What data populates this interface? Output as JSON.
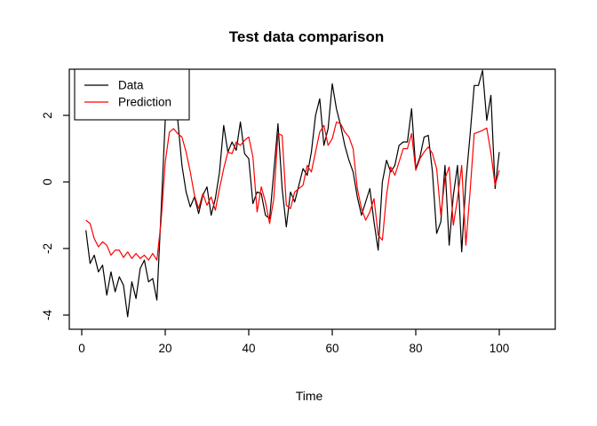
{
  "title": "Test data comparison",
  "chart_data": {
    "type": "line",
    "title": "Test data comparison",
    "xlabel": "Time",
    "ylabel": "",
    "x_start": 1,
    "xlim": [
      -3,
      113
    ],
    "ylim": [
      -4.35,
      3.45
    ],
    "xticks": [
      0,
      20,
      40,
      60,
      80,
      100
    ],
    "yticks": [
      -4,
      -2,
      0,
      2
    ],
    "grid": false,
    "legend": {
      "position": "top-left",
      "entries": [
        {
          "label": "Data",
          "color": "#000000"
        },
        {
          "label": "Prediction",
          "color": "#ff0000"
        }
      ]
    },
    "series": [
      {
        "name": "Data",
        "color": "#000000",
        "values": [
          -1.45,
          -2.45,
          -2.2,
          -2.7,
          -2.5,
          -3.4,
          -2.7,
          -3.3,
          -2.85,
          -3.1,
          -4.05,
          -3.0,
          -3.5,
          -2.6,
          -2.35,
          -3.0,
          -2.9,
          -3.55,
          -0.9,
          1.85,
          2.55,
          2.3,
          1.85,
          0.5,
          -0.3,
          -0.75,
          -0.45,
          -0.95,
          -0.4,
          -0.15,
          -1.0,
          -0.5,
          0.3,
          1.7,
          0.9,
          1.2,
          0.95,
          1.8,
          0.85,
          0.7,
          -0.65,
          -0.3,
          -0.35,
          -1.0,
          -1.1,
          0.3,
          1.75,
          -0.2,
          -1.35,
          -0.3,
          -0.6,
          -0.1,
          0.4,
          0.2,
          0.9,
          2.0,
          2.5,
          1.1,
          1.6,
          2.95,
          2.2,
          1.7,
          1.1,
          0.65,
          0.3,
          -0.45,
          -1.0,
          -0.6,
          -0.2,
          -1.2,
          -2.05,
          0.0,
          0.65,
          0.3,
          0.5,
          1.1,
          1.2,
          1.2,
          2.2,
          0.4,
          0.75,
          1.35,
          1.4,
          0.3,
          -1.55,
          -1.2,
          0.5,
          -1.9,
          -0.4,
          0.5,
          -2.1,
          0.0,
          1.4,
          2.9,
          2.9,
          3.35,
          1.85,
          2.6,
          -0.2,
          0.9
        ]
      },
      {
        "name": "Prediction",
        "color": "#ff0000",
        "values": [
          -1.15,
          -1.25,
          -1.7,
          -1.95,
          -1.8,
          -1.9,
          -2.2,
          -2.05,
          -2.05,
          -2.27,
          -2.1,
          -2.3,
          -2.15,
          -2.3,
          -2.2,
          -2.35,
          -2.15,
          -2.35,
          -1.2,
          0.6,
          1.5,
          1.6,
          1.45,
          1.35,
          0.9,
          0.3,
          -0.4,
          -0.8,
          -0.35,
          -0.7,
          -0.45,
          -0.85,
          -0.2,
          0.4,
          0.9,
          0.85,
          1.2,
          1.1,
          1.25,
          1.35,
          0.75,
          -0.9,
          -0.15,
          -0.6,
          -1.25,
          -0.5,
          1.45,
          1.4,
          -0.7,
          -0.8,
          -0.3,
          -0.2,
          -0.1,
          0.5,
          0.3,
          0.9,
          1.5,
          1.7,
          1.1,
          1.3,
          1.8,
          1.75,
          1.5,
          1.35,
          1.0,
          -0.2,
          -0.8,
          -1.15,
          -0.9,
          -0.5,
          -1.6,
          -1.75,
          -0.4,
          0.45,
          0.2,
          0.6,
          1.0,
          1.0,
          1.45,
          0.35,
          0.7,
          0.9,
          1.05,
          0.85,
          0.4,
          -1.0,
          0.1,
          0.45,
          -1.3,
          -0.5,
          0.5,
          -1.9,
          -0.3,
          1.45,
          1.5,
          1.55,
          1.62,
          0.87,
          -0.1,
          0.35
        ]
      }
    ]
  }
}
